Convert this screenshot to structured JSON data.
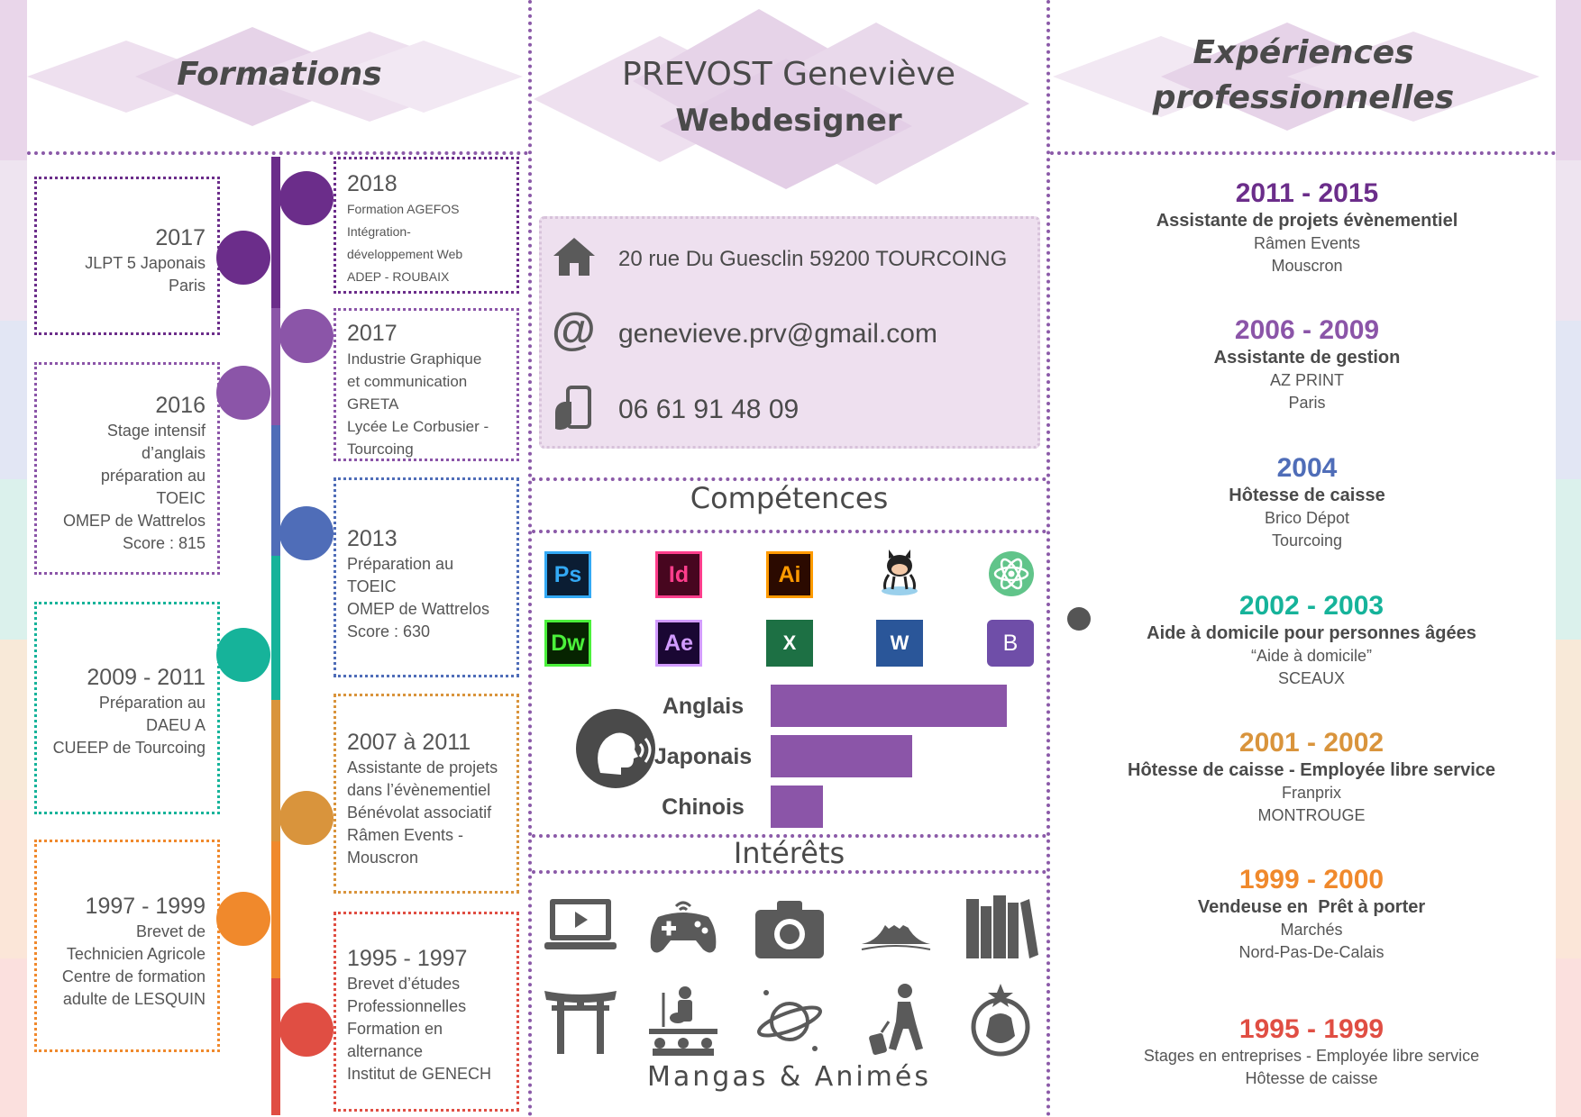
{
  "header": {
    "formations_title": "Formations",
    "name": "PREVOST Geneviève",
    "role": "Webdesigner",
    "experiences_title_line1": "Expériences",
    "experiences_title_line2": "professionnelles"
  },
  "colors": {
    "purple_dark": "#6b2d8a",
    "purple": "#8b55a8",
    "blue": "#4f6db8",
    "teal": "#16b39a",
    "tan": "#d9943c",
    "orange": "#f0892c",
    "red": "#e04e43",
    "accent_border": "#8b5aa8",
    "lilac_bg": "#eee0ef"
  },
  "formations_left": [
    {
      "year": "2017",
      "lines": [
        "JLPT 5 Japonais",
        "Paris"
      ]
    },
    {
      "year": "2016",
      "lines": [
        "Stage intensif",
        "d’anglais",
        "préparation au",
        "TOEIC",
        "OMEP de Wattrelos",
        "Score : 815"
      ]
    },
    {
      "year": "2009 - 2011",
      "lines": [
        "Préparation au",
        "DAEU A",
        "CUEEP de Tourcoing"
      ]
    },
    {
      "year": "1997 - 1999",
      "lines": [
        "Brevet de",
        "Technicien Agricole",
        "Centre de formation",
        "adulte de LESQUIN"
      ]
    }
  ],
  "formations_right": [
    {
      "year": "2018",
      "lines": [
        "Formation AGEFOS",
        "Intégration-",
        "développement Web",
        "ADEP - ROUBAIX"
      ]
    },
    {
      "year": "2017",
      "lines": [
        "Industrie Graphique",
        "et communication",
        "GRETA",
        "Lycée Le Corbusier -",
        "Tourcoing"
      ]
    },
    {
      "year": "2013",
      "lines": [
        "Préparation au",
        "TOEIC",
        "OMEP de Wattrelos",
        "Score : 630"
      ]
    },
    {
      "year": "2007 à 2011",
      "lines": [
        "Assistante de projets",
        "dans l’évènementiel",
        "Bénévolat associatif",
        "Râmen Events -",
        "Mouscron"
      ]
    },
    {
      "year": "1995 - 1997",
      "lines": [
        "Brevet d’études",
        "Professionnelles",
        "Formation en",
        "alternance",
        "Institut de GENECH"
      ]
    }
  ],
  "contact": {
    "address": "20 rue Du Guesclin 59200 TOURCOING",
    "email": "genevieve.prv@gmail.com",
    "phone": "06 61 91 48 09",
    "home_icon": "home-icon",
    "at_icon": "at-icon",
    "phone_icon": "phone-hand-icon"
  },
  "competences": {
    "title": "Compétences",
    "skills_row1": [
      {
        "label": "Ps",
        "icon": "photoshop-icon"
      },
      {
        "label": "Id",
        "icon": "indesign-icon"
      },
      {
        "label": "Ai",
        "icon": "illustrator-icon"
      },
      {
        "label": "",
        "icon": "github-octocat-icon"
      },
      {
        "label": "",
        "icon": "atom-icon"
      }
    ],
    "skills_row2": [
      {
        "label": "Dw",
        "icon": "dreamweaver-icon"
      },
      {
        "label": "Ae",
        "icon": "after-effects-icon"
      },
      {
        "label": "X",
        "icon": "excel-icon"
      },
      {
        "label": "W",
        "icon": "word-icon"
      },
      {
        "label": "B",
        "icon": "bootstrap-icon"
      }
    ],
    "languages": [
      {
        "name": "Anglais",
        "level": 1.0
      },
      {
        "name": "Japonais",
        "level": 0.6
      },
      {
        "name": "Chinois",
        "level": 0.22
      }
    ],
    "speaker_icon": "speaking-head-icon"
  },
  "interets": {
    "title": "Intérêts",
    "icons": [
      "laptop-video-icon",
      "gamepad-icon",
      "camera-icon",
      "mount-fuji-icon",
      "books-icon",
      "torii-gate-icon",
      "concert-icon",
      "planet-icon",
      "traveler-icon",
      "dog-star-icon"
    ],
    "caption": "Mangas & Animés"
  },
  "experiences": [
    {
      "years": "2011 - 2015",
      "title": "Assistante de projets évènementiel",
      "lines": [
        "Râmen Events",
        "Mouscron"
      ]
    },
    {
      "years": "2006 - 2009",
      "title": "Assistante de gestion",
      "lines": [
        "AZ PRINT",
        "Paris"
      ]
    },
    {
      "years": "2004",
      "title": "Hôtesse de caisse",
      "lines": [
        "Brico Dépot",
        "Tourcoing"
      ]
    },
    {
      "years": "2002 - 2003",
      "title": "Aide à domicile pour personnes âgées",
      "lines": [
        "“Aide à domicile”",
        "SCEAUX"
      ]
    },
    {
      "years": "2001 - 2002",
      "title": "Hôtesse de caisse - Employée libre service",
      "lines": [
        "Franprix",
        "MONTROUGE"
      ]
    },
    {
      "years": "1999 - 2000",
      "title": "Vendeuse en  Prêt à porter",
      "lines": [
        "Marchés",
        "Nord-Pas-De-Calais"
      ]
    },
    {
      "years": "1995 - 1999",
      "title": "",
      "lines": [
        "Stages en entreprises - Employée libre service",
        "Hôtesse de caisse"
      ]
    }
  ]
}
